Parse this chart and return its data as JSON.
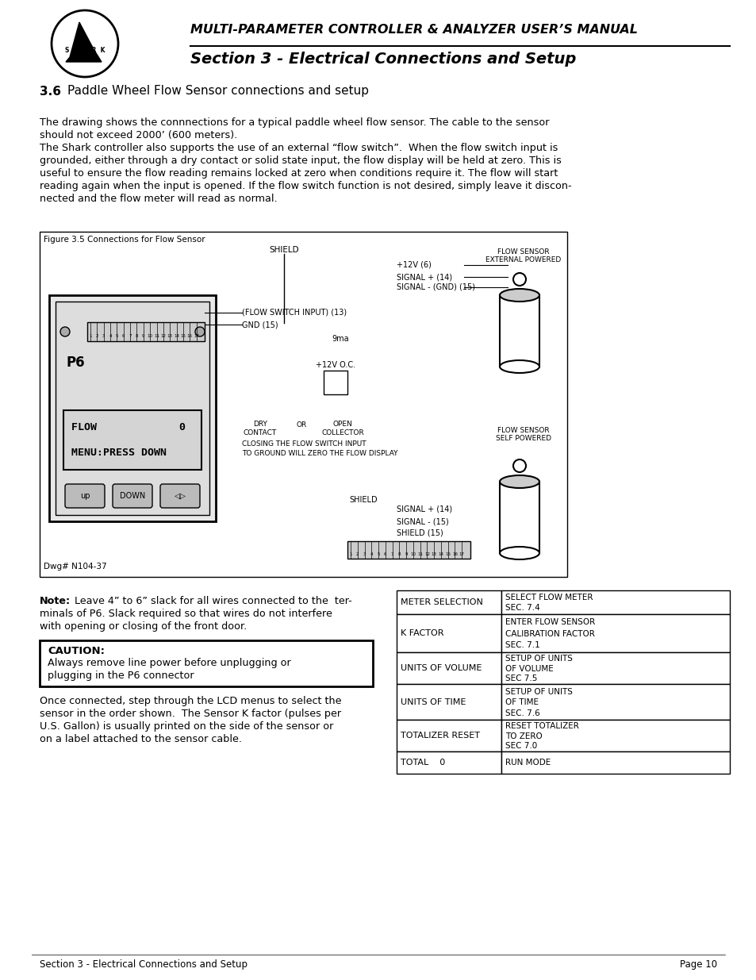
{
  "page_bg": "#ffffff",
  "header_line_color": "#000000",
  "title_main": "MULTI-PARAMETER CONTROLLER & ANALYZER USER’S MANUAL",
  "title_section": "Section 3 - Electrical Connections and Setup",
  "section_num": "3.6",
  "section_title": "Paddle Wheel Flow Sensor connections and setup",
  "para1": "The drawing shows the connnections for a typical paddle wheel flow sensor. The cable to the sensor\nshould not exceed 2000’ (600 meters).\nThe Shark controller also supports the use of an external “flow switch”.  When the flow switch input is\ngrounded, either through a dry contact or solid state input, the flow display will be held at zero. This is\nuseful to ensure the flow reading remains locked at zero when conditions require it. The flow will start\nreading again when the input is opened. If the flow switch function is not desired, simply leave it discon-\nnected and the flow meter will read as normal.",
  "note_text": "Note: Leave 4” to 6” slack for all wires connected to the  ter-\nminals of P6. Slack required so that wires do not interfere\nwith opening or closing of the front door.",
  "caution_title": "CAUTION:",
  "caution_text": "Always remove line power before unplugging or\nplugging in the P6 connector",
  "para2": "Once connected, step through the LCD menus to select the\nsensor in the order shown.  The Sensor K factor (pulses per\nU.S. Gallon) is usually printed on the side of the sensor or\non a label attached to the sensor cable.",
  "figure_caption": "Figure 3.5 Connections for Flow Sensor",
  "dwg_label": "Dwg# N104-37",
  "footer_left": "Section 3 - Electrical Connections and Setup",
  "footer_right": "Page 10",
  "table_rows": [
    [
      "METER SELECTION",
      "SELECT FLOW METER\nSEC. 7.4"
    ],
    [
      "K FACTOR",
      "ENTER FLOW SENSOR\nCALIBRATION FACTOR\nSEC. 7.1"
    ],
    [
      "UNITS OF VOLUME",
      "SETUP OF UNITS\nOF VOLUME\nSEC 7.5"
    ],
    [
      "UNITS OF TIME",
      "SETUP OF UNITS\nOF TIME\nSEC. 7.6"
    ],
    [
      "TOTALIZER RESET",
      "RESET TOTALIZER\nTO ZERO\nSEC 7.0"
    ],
    [
      "TOTAL    0",
      "RUN MODE"
    ]
  ]
}
